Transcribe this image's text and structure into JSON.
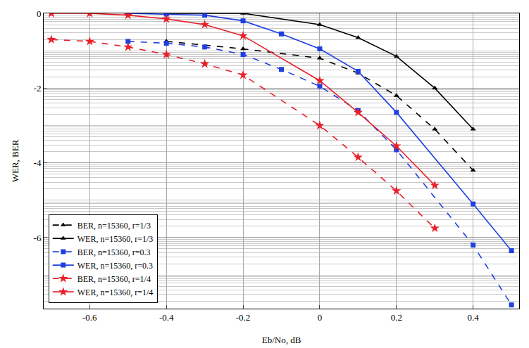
{
  "chart_data": {
    "type": "line",
    "x_label": "Eb/No, dB",
    "y_label": "WER, BER",
    "xlim": [
      -0.72,
      0.52
    ],
    "ylim": [
      -7.9,
      0
    ],
    "xticks": [
      -0.6,
      -0.4,
      -0.2,
      0,
      0.2,
      0.4
    ],
    "yticks": [
      0,
      -2,
      -4,
      -6
    ],
    "grid": true,
    "legend": "lower left",
    "series": [
      {
        "name": "BER, n=15360, r=1/3",
        "color": "#000000",
        "marker": "triangle-up",
        "line_style": "dashed",
        "x": [
          -0.4,
          -0.2,
          0,
          0.1,
          0.2,
          0.3,
          0.4
        ],
        "values": [
          -0.75,
          -0.95,
          -1.2,
          -1.6,
          -2.2,
          -3.1,
          -4.2
        ]
      },
      {
        "name": "WER, n=15360, r=1/3",
        "color": "#000000",
        "marker": "triangle-up",
        "line_style": "solid",
        "x": [
          -0.4,
          -0.2,
          0,
          0.1,
          0.2,
          0.3,
          0.4
        ],
        "values": [
          0,
          0,
          -0.3,
          -0.65,
          -1.15,
          -2.0,
          -3.1
        ]
      },
      {
        "name": "BER, n=15360, r=0.3",
        "color": "#1f3fe0",
        "marker": "square",
        "line_style": "dashed",
        "x": [
          -0.5,
          -0.4,
          -0.3,
          -0.2,
          -0.1,
          0,
          0.1,
          0.2,
          0.4,
          0.5
        ],
        "values": [
          -0.75,
          -0.8,
          -0.9,
          -1.1,
          -1.5,
          -1.95,
          -2.6,
          -3.65,
          -6.2,
          -7.8
        ]
      },
      {
        "name": "WER, n=15360, r=0.3",
        "color": "#1f3fe0",
        "marker": "square",
        "line_style": "solid",
        "x": [
          -0.5,
          -0.4,
          -0.3,
          -0.2,
          -0.1,
          0,
          0.1,
          0.2,
          0.4,
          0.5
        ],
        "values": [
          0,
          -0.02,
          -0.05,
          -0.2,
          -0.55,
          -0.95,
          -1.55,
          -2.65,
          -5.1,
          -6.35
        ]
      },
      {
        "name": "BER, n=15360, r=1/4",
        "color": "#e8202a",
        "marker": "star",
        "line_style": "dashed",
        "x": [
          -0.7,
          -0.6,
          -0.5,
          -0.4,
          -0.3,
          -0.2,
          0,
          0.1,
          0.2,
          0.3
        ],
        "values": [
          -0.7,
          -0.75,
          -0.9,
          -1.1,
          -1.35,
          -1.65,
          -3.0,
          -3.85,
          -4.75,
          -5.75
        ]
      },
      {
        "name": "WER, n=15360, r=1/4",
        "color": "#e8202a",
        "marker": "star",
        "line_style": "solid",
        "x": [
          -0.7,
          -0.6,
          -0.5,
          -0.4,
          -0.3,
          -0.2,
          0,
          0.1,
          0.2,
          0.3
        ],
        "values": [
          0,
          0,
          -0.05,
          -0.15,
          -0.3,
          -0.6,
          -1.8,
          -2.65,
          -3.55,
          -4.6
        ]
      }
    ]
  }
}
